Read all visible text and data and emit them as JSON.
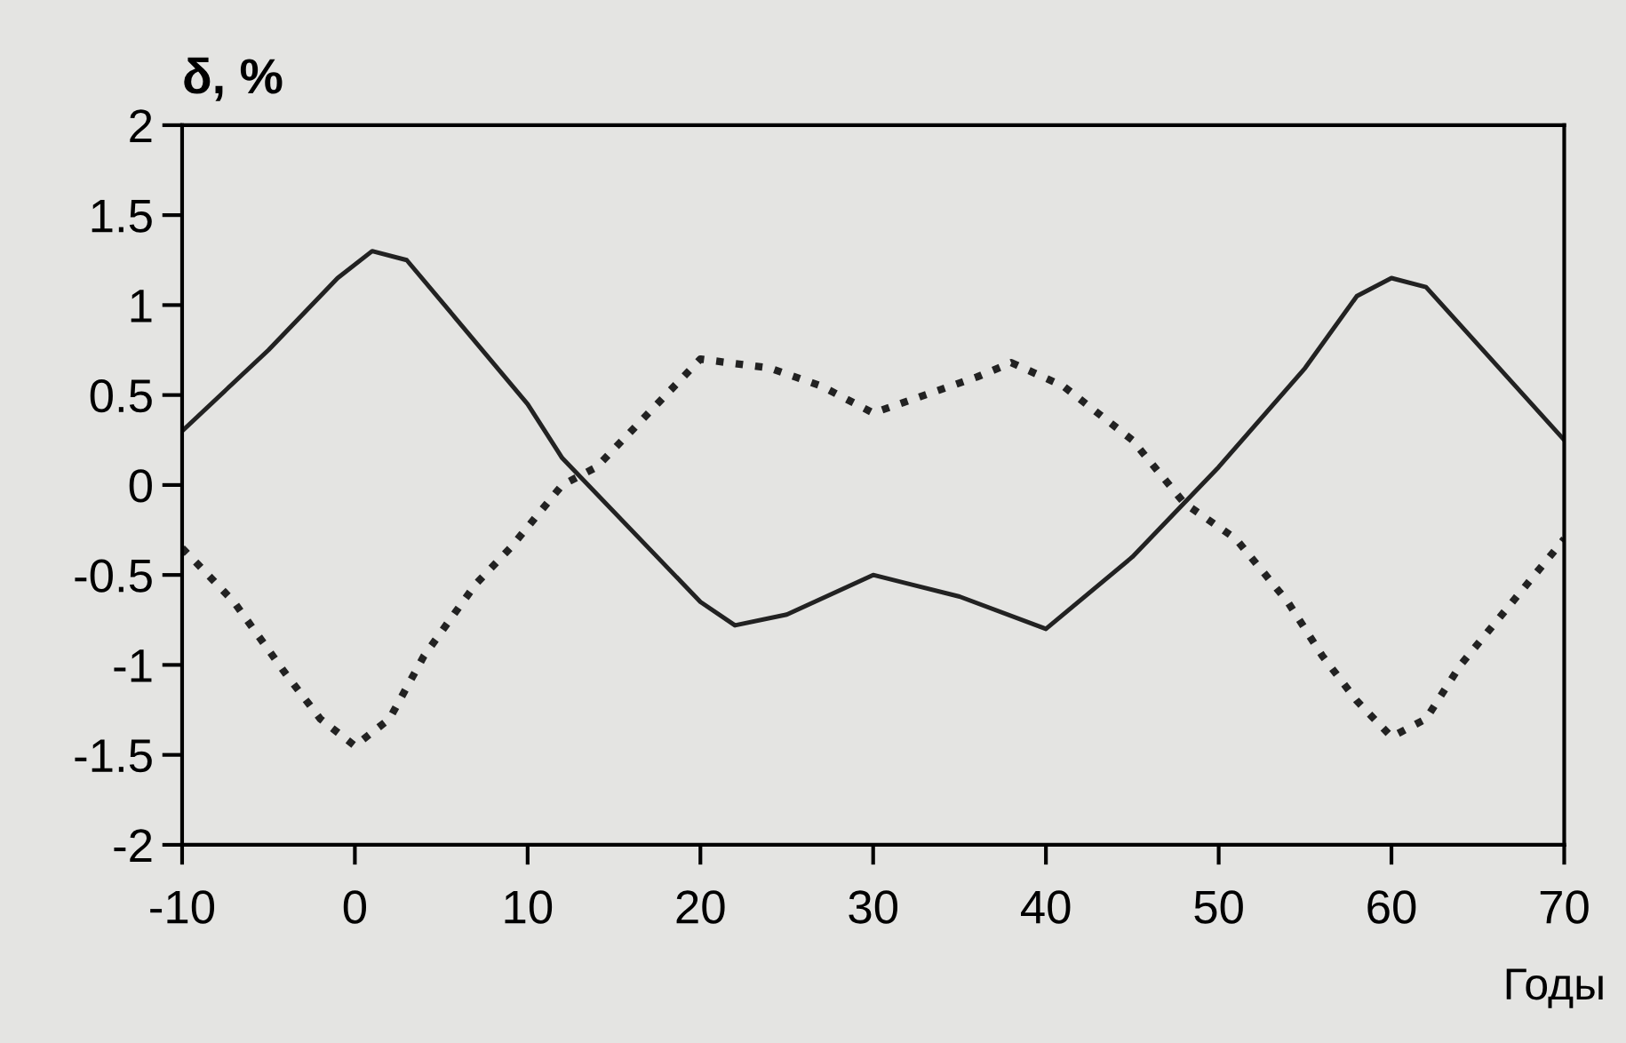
{
  "chart_data": {
    "type": "line",
    "ylabel": "δ, %",
    "xlabel": "Годы",
    "xlim": [
      -10,
      70
    ],
    "ylim": [
      -2,
      2
    ],
    "xticks": [
      -10,
      0,
      10,
      20,
      30,
      40,
      50,
      60,
      70
    ],
    "yticks": [
      -2,
      -1.5,
      -1,
      -0.5,
      0,
      0.5,
      1,
      1.5,
      2
    ],
    "grid": false,
    "legend": false,
    "series": [
      {
        "color": "#222222",
        "line_style": "solid",
        "x": [
          -10,
          -5,
          -1,
          1,
          3,
          10,
          12,
          20,
          22,
          25,
          30,
          35,
          40,
          45,
          50,
          55,
          58,
          60,
          62,
          70
        ],
        "values": [
          0.3,
          0.75,
          1.15,
          1.3,
          1.25,
          0.45,
          0.15,
          -0.65,
          -0.78,
          -0.72,
          -0.5,
          -0.62,
          -0.8,
          -0.4,
          0.1,
          0.65,
          1.05,
          1.15,
          1.1,
          0.25
        ]
      },
      {
        "color": "#222222",
        "line_style": "dotted",
        "x": [
          -10,
          -7,
          -4,
          -2,
          0,
          2,
          4,
          7,
          9,
          12,
          14,
          17,
          20,
          24,
          27,
          30,
          33,
          36,
          38,
          41,
          45,
          48,
          51,
          54,
          56,
          58,
          60,
          62,
          64,
          67,
          70
        ],
        "values": [
          -0.35,
          -0.65,
          -1.05,
          -1.3,
          -1.45,
          -1.3,
          -0.95,
          -0.55,
          -0.35,
          0.0,
          0.1,
          0.4,
          0.7,
          0.65,
          0.55,
          0.4,
          0.5,
          0.6,
          0.68,
          0.55,
          0.25,
          -0.1,
          -0.3,
          -0.65,
          -0.95,
          -1.2,
          -1.4,
          -1.3,
          -1.0,
          -0.65,
          -0.3
        ]
      }
    ]
  }
}
